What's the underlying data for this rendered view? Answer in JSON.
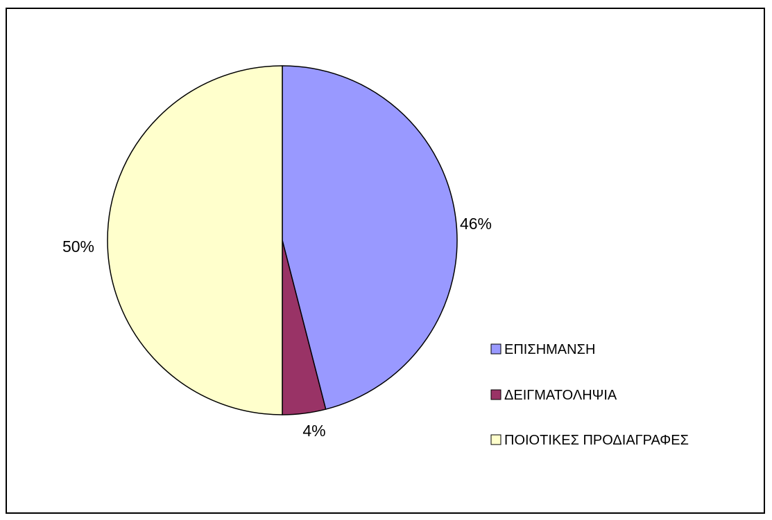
{
  "chart_data": {
    "type": "pie",
    "title": "",
    "legend_position": "right",
    "slices": [
      {
        "label": "ΕΠΙΣΗΜΑΝΣΗ",
        "value": 46,
        "display": "46%",
        "color": "#9999ff"
      },
      {
        "label": "ΔΕΙΓΜΑΤΟΛΗΨΙΑ",
        "value": 4,
        "display": "4%",
        "color": "#993366"
      },
      {
        "label": "ΠΟΙΟΤΙΚΕΣ ΠΡΟΔΙΑΓΡΑΦΕΣ",
        "value": 50,
        "display": "50%",
        "color": "#ffffcc"
      }
    ]
  }
}
